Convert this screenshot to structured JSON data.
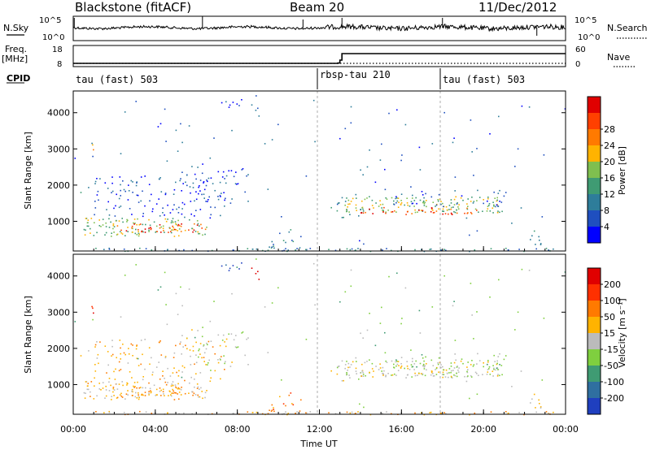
{
  "header": {
    "radar": "Blackstone (fitACF)",
    "beam": "Beam 20",
    "date": "11/Dec/2012"
  },
  "chart_data": [
    {
      "name": "noise-panel",
      "type": "line",
      "left_label": "N.Sky",
      "right_label": "N.Search",
      "left_ticks": [
        "10^5",
        "10^0"
      ],
      "right_ticks": [
        "10^5",
        "10^0"
      ],
      "description_series": [
        {
          "name": "N.Sky",
          "style": "solid"
        },
        {
          "name": "N.Search",
          "style": "dotted"
        }
      ]
    },
    {
      "name": "freq-nave-panel",
      "type": "line",
      "left_label_1": "Freq.",
      "left_label_2": "[MHz]",
      "right_label": "Nave",
      "left_ticks": [
        18,
        8
      ],
      "right_ticks": [
        60,
        0
      ],
      "freq_steps": [
        {
          "t": 0,
          "v": 9
        },
        {
          "t": 12.9,
          "v": 9.2
        },
        {
          "t": 13.0,
          "v": 11
        },
        {
          "t": 13.1,
          "v": 15
        },
        {
          "t": 24,
          "v": 15
        }
      ]
    },
    {
      "name": "cpid-strip",
      "label": "CPID",
      "segments": [
        {
          "start": 0,
          "end": 12.0,
          "text": "tau (fast) 503"
        },
        {
          "start": 12.0,
          "end": 18.0,
          "text": "rbsp-tau 210"
        },
        {
          "start": 18.0,
          "end": 24,
          "text": "tau (fast) 503"
        }
      ]
    },
    {
      "name": "power-panel",
      "type": "heatmap",
      "ylabel": "Slant Range [km]",
      "yticks": [
        1000,
        2000,
        3000,
        4000
      ],
      "ylim": [
        180,
        4600
      ],
      "colorbar": {
        "label": "Power [dB]",
        "ticks": [
          4,
          8,
          12,
          16,
          20,
          24,
          28
        ],
        "colors": [
          "#0000ff",
          "#1f4fbf",
          "#2e7d9a",
          "#3f9b73",
          "#7fbf4f",
          "#ffb300",
          "#ff7a00",
          "#ff4000",
          "#e00000"
        ]
      }
    },
    {
      "name": "velocity-panel",
      "type": "heatmap",
      "ylabel": "Slant Range [km]",
      "yticks": [
        1000,
        2000,
        3000,
        4000
      ],
      "ylim": [
        180,
        4600
      ],
      "xlabel": "Time UT",
      "xticks": [
        "00:00",
        "04:00",
        "08:00",
        "12:00",
        "16:00",
        "20:00",
        "00:00"
      ],
      "colorbar": {
        "label": "Velocity [m s⁻¹]",
        "ticks": [
          200,
          100,
          50,
          15,
          -15,
          -50,
          -100,
          -200
        ],
        "colors": [
          "#1f3fbf",
          "#2f6fa0",
          "#3f9b73",
          "#7fcf3f",
          "#bbbbbb",
          "#ffb300",
          "#ff7a00",
          "#ff3000",
          "#e00000"
        ]
      }
    }
  ]
}
